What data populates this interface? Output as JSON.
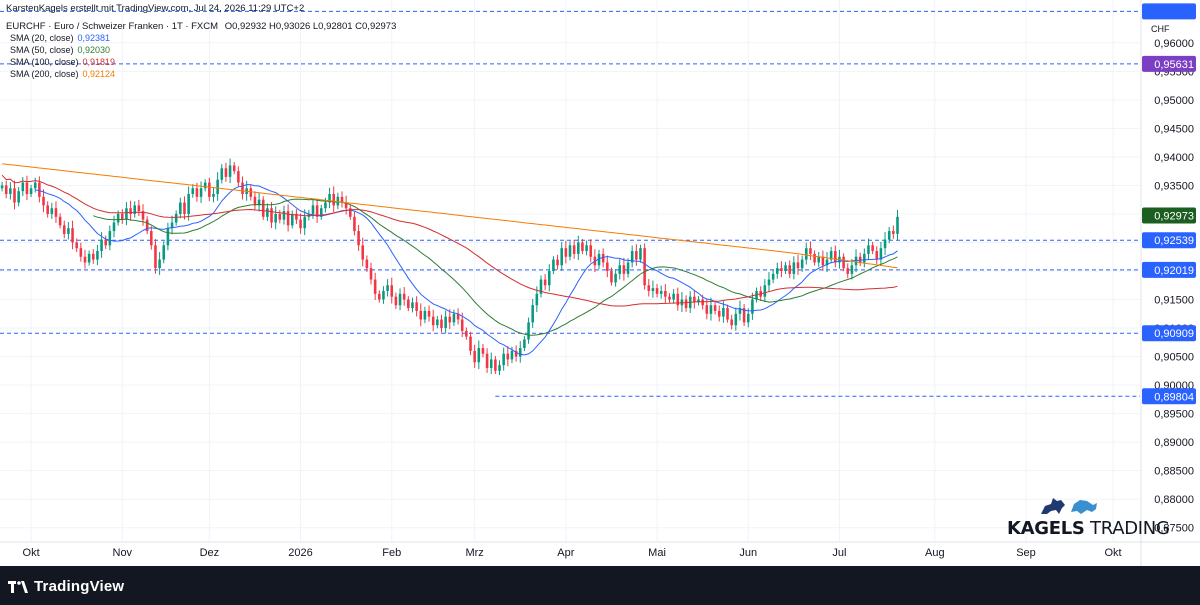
{
  "header": {
    "credit": "KarstenKagels erstellt mit TradingView.com, Jul 24, 2026 11:29 UTC+2",
    "symbol_line": "EURCHF · Euro / Schweizer Franken · 1T · FXCM",
    "ohlc": "O0,92932 H0,93026 L0,92801 C0,92973"
  },
  "indicators": [
    {
      "label": "SMA (20, close)",
      "value": "0,92381",
      "color": "#2962ff"
    },
    {
      "label": "SMA (50, close)",
      "value": "0,92030",
      "color": "#2e7d32"
    },
    {
      "label": "SMA (100, close)",
      "value": "0,91819",
      "color": "#d32f2f"
    },
    {
      "label": "SMA (200, close)",
      "value": "0,92124",
      "color": "#f57c00"
    }
  ],
  "axis": {
    "currency": "CHF"
  },
  "branding": {
    "tradingview": "TradingView",
    "watermark_bold": "KAGELS",
    "watermark_rest": "TRADING"
  },
  "colors": {
    "up": "#089981",
    "down": "#f23645",
    "grid": "#f0f3fa",
    "hline": "#2962ff"
  },
  "chart_data": {
    "type": "candlestick",
    "y_range": [
      0.8725,
      0.9675
    ],
    "y_ticks": [
      "0,96000",
      "0,95500",
      "0,95000",
      "0,94500",
      "0,94000",
      "0,93500",
      "0,93000",
      "0,92500",
      "0,92000",
      "0,91500",
      "0,91000",
      "0,90500",
      "0,90000",
      "0,89500",
      "0,89000",
      "0,88500",
      "0,88000",
      "0,87500"
    ],
    "x_labels": [
      {
        "label": "Okt",
        "index": 7
      },
      {
        "label": "Nov",
        "index": 29
      },
      {
        "label": "Dez",
        "index": 50
      },
      {
        "label": "2026",
        "index": 72
      },
      {
        "label": "Feb",
        "index": 94
      },
      {
        "label": "Mrz",
        "index": 114
      },
      {
        "label": "Apr",
        "index": 136
      },
      {
        "label": "Mai",
        "index": 158
      },
      {
        "label": "Jun",
        "index": 180
      },
      {
        "label": "Jul",
        "index": 202
      },
      {
        "label": "Aug",
        "index": 225
      },
      {
        "label": "Sep",
        "index": 247
      },
      {
        "label": "Okt",
        "index": 268
      }
    ],
    "total_slots": 275,
    "horizontal_levels": [
      {
        "value": 0.9655,
        "label": "",
        "color": "#2962ff"
      },
      {
        "value": 0.95631,
        "label": "0,95631",
        "color": "#7b3fc4"
      },
      {
        "value": 0.92539,
        "label": "0,92539",
        "color": "#2962ff"
      },
      {
        "value": 0.92019,
        "label": "0,92019",
        "color": "#2962ff"
      },
      {
        "value": 0.90909,
        "label": "0,90909",
        "color": "#2962ff"
      },
      {
        "value": 0.89804,
        "label": "0,89804",
        "color": "#2962ff",
        "from_index": 119
      }
    ],
    "last_price": {
      "value": 0.92973,
      "label": "0,92973",
      "color": "#1b5e20"
    },
    "closes": [
      0.935,
      0.9335,
      0.9345,
      0.932,
      0.934,
      0.9355,
      0.9335,
      0.9345,
      0.9355,
      0.933,
      0.9315,
      0.93,
      0.931,
      0.9295,
      0.928,
      0.9265,
      0.9275,
      0.925,
      0.924,
      0.9225,
      0.9215,
      0.923,
      0.922,
      0.9235,
      0.9255,
      0.9245,
      0.927,
      0.9285,
      0.93,
      0.929,
      0.931,
      0.93,
      0.9315,
      0.9305,
      0.929,
      0.927,
      0.9245,
      0.9205,
      0.922,
      0.9245,
      0.9275,
      0.9285,
      0.93,
      0.932,
      0.93,
      0.9335,
      0.9345,
      0.933,
      0.9345,
      0.9355,
      0.933,
      0.9335,
      0.936,
      0.938,
      0.9365,
      0.9385,
      0.9375,
      0.9355,
      0.9335,
      0.9345,
      0.933,
      0.9315,
      0.9325,
      0.9295,
      0.931,
      0.9285,
      0.93,
      0.929,
      0.9305,
      0.928,
      0.93,
      0.929,
      0.9275,
      0.9295,
      0.93,
      0.9315,
      0.9295,
      0.931,
      0.932,
      0.9335,
      0.9315,
      0.933,
      0.932,
      0.931,
      0.9295,
      0.927,
      0.9245,
      0.922,
      0.9205,
      0.9185,
      0.916,
      0.915,
      0.9165,
      0.9175,
      0.9155,
      0.914,
      0.916,
      0.915,
      0.9135,
      0.9145,
      0.913,
      0.9115,
      0.913,
      0.912,
      0.9105,
      0.9115,
      0.91,
      0.912,
      0.911,
      0.9125,
      0.9115,
      0.9095,
      0.9085,
      0.906,
      0.904,
      0.9065,
      0.9055,
      0.903,
      0.9045,
      0.9025,
      0.9035,
      0.9055,
      0.9045,
      0.906,
      0.905,
      0.9065,
      0.908,
      0.911,
      0.914,
      0.916,
      0.9185,
      0.9175,
      0.92,
      0.922,
      0.921,
      0.924,
      0.9225,
      0.9245,
      0.923,
      0.925,
      0.9235,
      0.9245,
      0.9225,
      0.921,
      0.923,
      0.9215,
      0.92,
      0.918,
      0.9195,
      0.921,
      0.9195,
      0.9215,
      0.9235,
      0.922,
      0.924,
      0.9175,
      0.9165,
      0.917,
      0.916,
      0.9165,
      0.9155,
      0.915,
      0.916,
      0.914,
      0.915,
      0.9135,
      0.9155,
      0.9145,
      0.915,
      0.914,
      0.9125,
      0.914,
      0.913,
      0.912,
      0.9135,
      0.9115,
      0.9105,
      0.9125,
      0.9135,
      0.911,
      0.9125,
      0.915,
      0.9165,
      0.9155,
      0.9175,
      0.9185,
      0.9195,
      0.9205,
      0.92,
      0.921,
      0.9195,
      0.9215,
      0.9205,
      0.922,
      0.924,
      0.923,
      0.9215,
      0.9225,
      0.921,
      0.922,
      0.9235,
      0.9215,
      0.9225,
      0.9205,
      0.9195,
      0.921,
      0.9225,
      0.9215,
      0.923,
      0.9245,
      0.9235,
      0.922,
      0.924,
      0.9255,
      0.927,
      0.9265,
      0.9295
    ],
    "ma_series": [
      {
        "label": "SMA 20",
        "period": 20,
        "color": "#2962ff"
      },
      {
        "label": "SMA 50",
        "period": 50,
        "color": "#2e7d32"
      },
      {
        "label": "SMA 100",
        "period": 100,
        "color": "#d32f2f"
      },
      {
        "label": "SMA 200",
        "period": 200,
        "color": "#f57c00"
      }
    ]
  }
}
